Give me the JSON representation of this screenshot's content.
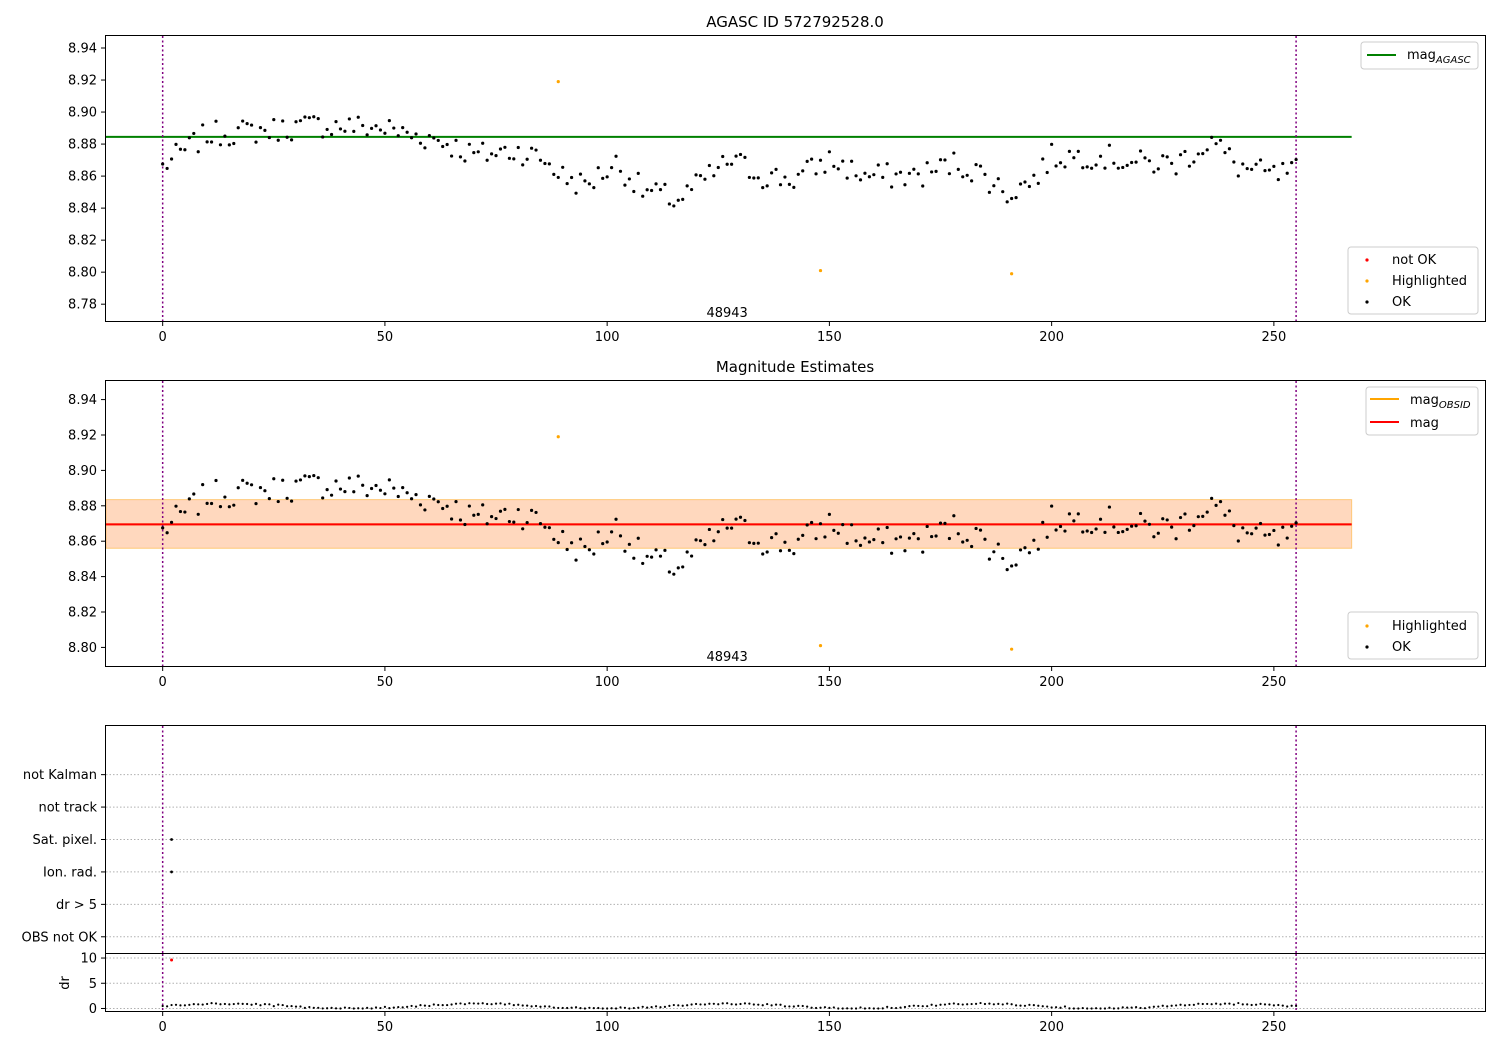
{
  "chart_data": [
    {
      "id": "agasc",
      "type": "scatter",
      "title": "AGASC ID 572792528.0",
      "xlim": [
        -12.75,
        297.5
      ],
      "ylim": [
        8.7695,
        8.9475
      ],
      "xticks": [
        0,
        50,
        100,
        150,
        200,
        250
      ],
      "yticks": [
        8.78,
        8.8,
        8.82,
        8.84,
        8.86,
        8.88,
        8.9,
        8.92,
        8.94
      ],
      "vlines": [
        0,
        255
      ],
      "annotation": {
        "text": "48943",
        "x": 127,
        "y": 8.7745
      },
      "hline": {
        "name": "mag_AGASC",
        "y": 8.8845,
        "x": [
          -12.75,
          267.5
        ],
        "color": "#008000"
      },
      "legend_lines": [
        {
          "label": "mag",
          "sub": "AGASC",
          "color": "#008000"
        }
      ],
      "legend_points": [
        {
          "label": "not OK",
          "color": "#ff0000"
        },
        {
          "label": "Highlighted",
          "color": "#ffa500"
        },
        {
          "label": "OK",
          "color": "#000000"
        }
      ]
    },
    {
      "id": "estimates",
      "type": "scatter",
      "title": "Magnitude Estimates",
      "xlim": [
        -12.75,
        297.5
      ],
      "ylim": [
        8.7895,
        8.9505
      ],
      "xticks": [
        0,
        50,
        100,
        150,
        200,
        250
      ],
      "yticks": [
        8.8,
        8.82,
        8.84,
        8.86,
        8.88,
        8.9,
        8.92,
        8.94
      ],
      "vlines": [
        0,
        255
      ],
      "annotation": {
        "text": "48943",
        "x": 127,
        "y": 8.7945
      },
      "bands": [
        {
          "x": [
            -12.75,
            267.5
          ],
          "y": [
            8.856,
            8.8835
          ],
          "color": "#ffc0cb",
          "opacity": 0.45
        },
        {
          "x": [
            -12.75,
            267.5
          ],
          "y": [
            8.856,
            8.8835
          ],
          "color": "#ffa500",
          "opacity": 0.18
        }
      ],
      "hlines": [
        {
          "name": "mag_OBSID",
          "y": 8.8695,
          "x": [
            -12.75,
            267.5
          ],
          "color": "#ffa500"
        },
        {
          "name": "mag",
          "y": 8.8695,
          "x": [
            -12.75,
            267.5
          ],
          "color": "#ff0000"
        }
      ],
      "legend_lines": [
        {
          "label": "mag",
          "sub": "OBSID",
          "color": "#ffa500"
        },
        {
          "label": "mag",
          "sub": "",
          "color": "#ff0000"
        }
      ],
      "legend_points": [
        {
          "label": "Highlighted",
          "color": "#ffa500"
        },
        {
          "label": "OK",
          "color": "#000000"
        }
      ]
    },
    {
      "id": "flags",
      "type": "scatter",
      "xlim": [
        -12.75,
        297.5
      ],
      "ylim": [
        -0.5,
        6.5
      ],
      "categories": [
        "OBS not OK",
        "dr > 5",
        "Ion. rad.",
        "Sat. pixel.",
        "not track",
        "not Kalman"
      ],
      "vlines": [
        0,
        255
      ],
      "points": [
        {
          "x": 2,
          "y": 2
        },
        {
          "x": 2,
          "y": 3
        }
      ]
    },
    {
      "id": "dr",
      "type": "scatter",
      "ylabel": "dr",
      "xlim": [
        -12.75,
        297.5
      ],
      "ylim": [
        -0.5,
        10.8
      ],
      "xticks": [
        0,
        50,
        100,
        150,
        200,
        250
      ],
      "yticks": [
        0,
        5,
        10
      ],
      "vlines": [
        0,
        255
      ],
      "red_points": [
        {
          "x": 2,
          "y": 9.6
        }
      ]
    }
  ]
}
